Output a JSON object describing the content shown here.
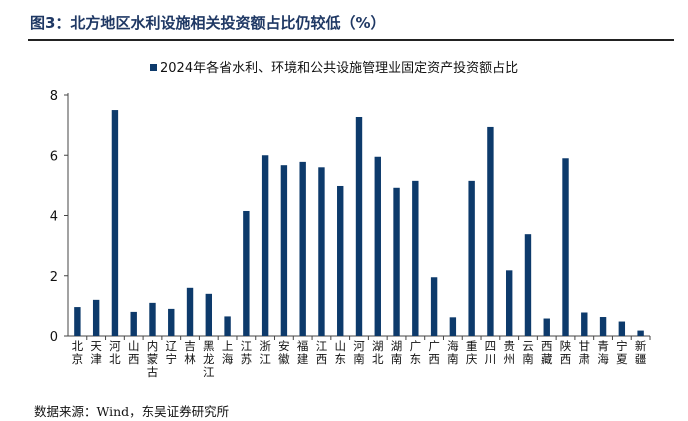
{
  "title": "图3：北方地区水利设施相关投资额占比仍较低（%）",
  "source": "数据来源：Wind，东吴证券研究所",
  "colors": {
    "bar": "#0d3a6b",
    "title": "#1f3864"
  },
  "chart_data": {
    "type": "bar",
    "title": "图3：北方地区水利设施相关投资额占比仍较低（%）",
    "legend": [
      "2024年各省水利、环境和公共设施管理业固定资产投资额占比"
    ],
    "legend_position": "top-center",
    "xlabel": "",
    "ylabel": "",
    "ylim": [
      0,
      8
    ],
    "yticks": [
      0,
      2,
      4,
      6,
      8
    ],
    "categories": [
      "北京",
      "天津",
      "河北",
      "山西",
      "内蒙古",
      "辽宁",
      "吉林",
      "黑龙江",
      "上海",
      "江苏",
      "浙江",
      "安徽",
      "福建",
      "江西",
      "山东",
      "河南",
      "湖北",
      "湖南",
      "广东",
      "广西",
      "海南",
      "重庆",
      "四川",
      "贵州",
      "云南",
      "西藏",
      "陕西",
      "甘肃",
      "青海",
      "宁夏",
      "新疆"
    ],
    "series": [
      {
        "name": "2024年各省水利、环境和公共设施管理业固定资产投资额占比",
        "values": [
          0.96,
          1.2,
          7.5,
          0.8,
          1.1,
          0.9,
          1.6,
          1.4,
          0.65,
          4.15,
          6.0,
          5.67,
          5.78,
          5.6,
          4.98,
          7.27,
          5.95,
          4.92,
          5.15,
          1.95,
          0.62,
          5.15,
          6.94,
          2.18,
          3.38,
          0.58,
          5.9,
          0.78,
          0.63,
          0.48,
          0.18
        ]
      }
    ]
  }
}
